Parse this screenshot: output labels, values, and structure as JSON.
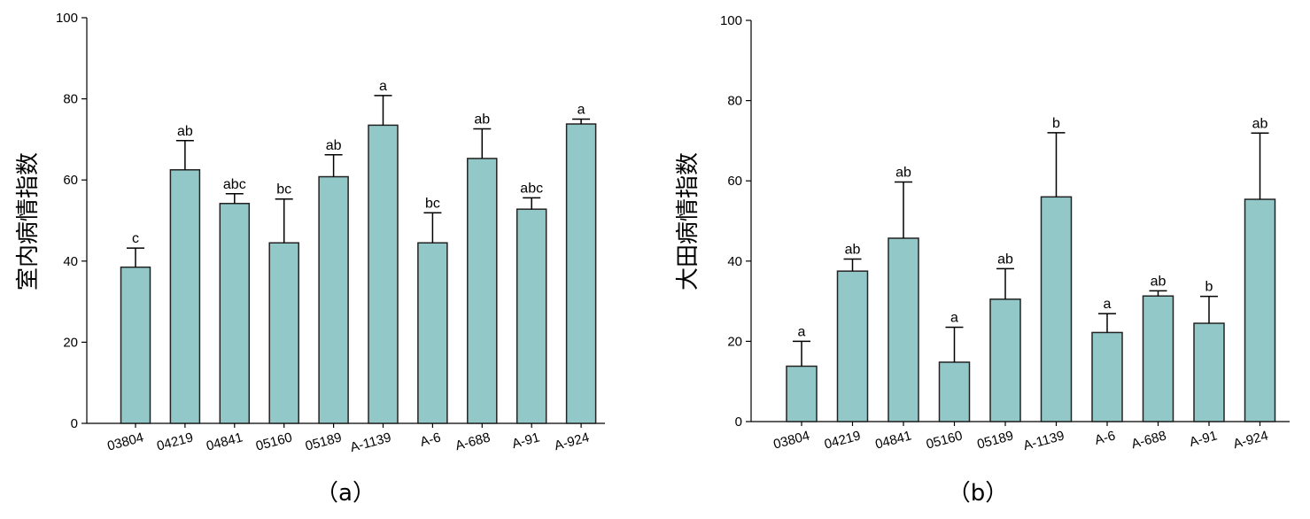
{
  "chart_data": [
    {
      "type": "bar",
      "panel_label": "（a）",
      "ylabel": "室内病情指数",
      "ylim": [
        0,
        100
      ],
      "yticks": [
        0,
        20,
        40,
        60,
        80,
        100
      ],
      "categories": [
        "03804",
        "04219",
        "04841",
        "05160",
        "05189",
        "A-1139",
        "A-6",
        "A-688",
        "A-91",
        "A-924"
      ],
      "values": [
        38.5,
        62.5,
        54.2,
        44.5,
        60.8,
        73.5,
        44.5,
        65.3,
        52.8,
        73.8
      ],
      "errors": [
        4.7,
        7.2,
        2.4,
        10.8,
        5.4,
        7.3,
        7.4,
        7.3,
        2.8,
        1.2
      ],
      "significance": [
        "c",
        "ab",
        "abc",
        "bc",
        "ab",
        "a",
        "bc",
        "ab",
        "abc",
        "a"
      ],
      "bar_color": "#93c8c8"
    },
    {
      "type": "bar",
      "panel_label": "（b）",
      "ylabel": "大田病情指数",
      "ylim": [
        0,
        100
      ],
      "yticks": [
        0,
        20,
        40,
        60,
        80,
        100
      ],
      "categories": [
        "03804",
        "04219",
        "04841",
        "05160",
        "05189",
        "A-1139",
        "A-6",
        "A-688",
        "A-91",
        "A-924"
      ],
      "values": [
        13.8,
        37.5,
        45.7,
        14.8,
        30.5,
        56.0,
        22.2,
        31.3,
        24.5,
        55.4
      ],
      "errors": [
        6.2,
        3.0,
        14.0,
        8.7,
        7.6,
        16.0,
        4.7,
        1.3,
        6.7,
        16.5
      ],
      "significance": [
        "a",
        "ab",
        "ab",
        "a",
        "ab",
        "b",
        "a",
        "ab",
        "b",
        "ab"
      ],
      "bar_color": "#93c8c8"
    }
  ]
}
